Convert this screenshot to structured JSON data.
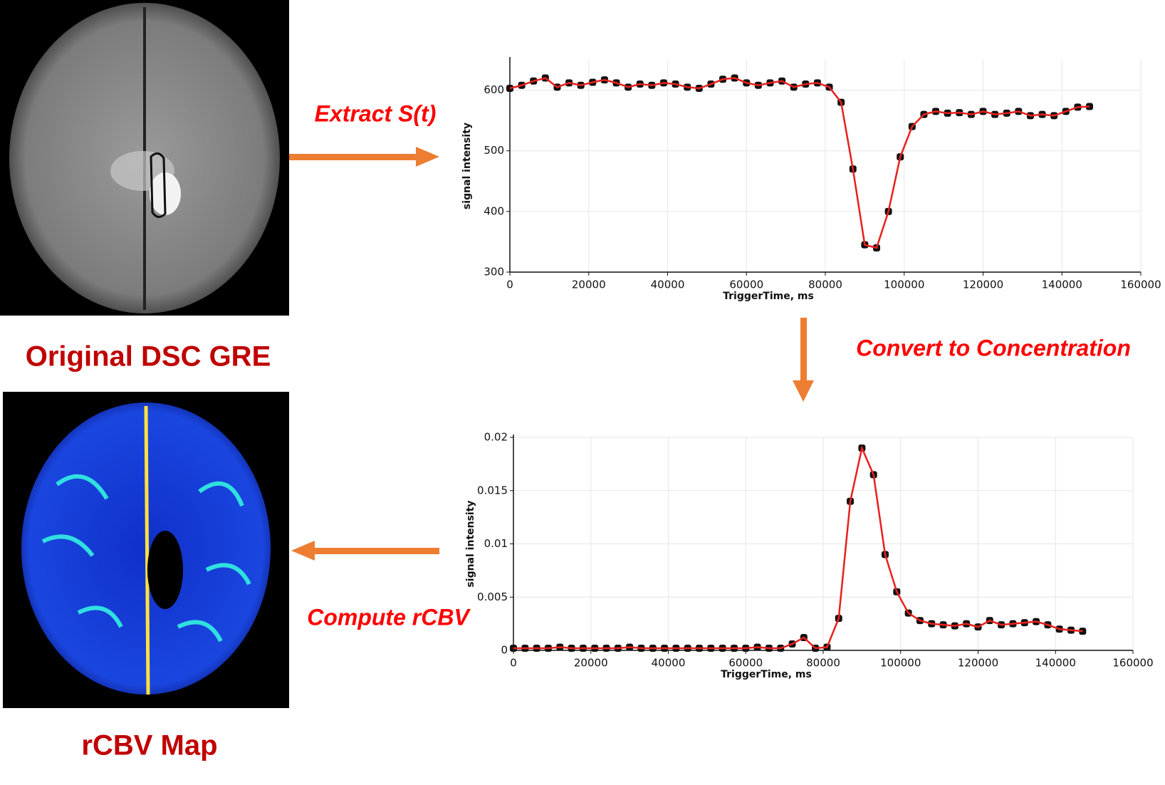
{
  "captions": {
    "original": "Original DSC GRE",
    "rcbv": "rCBV Map"
  },
  "steps": {
    "extract": "Extract S(t)",
    "convert": "Convert to Concentration",
    "compute": "Compute rCBV"
  },
  "chart_data": [
    {
      "type": "line",
      "xlabel": "TriggerTime, ms",
      "ylabel": "signal intensity",
      "x": [
        0,
        3000,
        6000,
        9000,
        12000,
        15000,
        18000,
        21000,
        24000,
        27000,
        30000,
        33000,
        36000,
        39000,
        42000,
        45000,
        48000,
        51000,
        54000,
        57000,
        60000,
        63000,
        66000,
        69000,
        72000,
        75000,
        78000,
        81000,
        84000,
        87000,
        90000,
        93000,
        96000,
        99000,
        102000,
        105000,
        108000,
        111000,
        114000,
        117000,
        120000,
        123000,
        126000,
        129000,
        132000,
        135000,
        138000,
        141000,
        144000,
        147000
      ],
      "values": [
        603,
        608,
        615,
        620,
        605,
        612,
        608,
        613,
        617,
        612,
        605,
        610,
        608,
        612,
        610,
        605,
        603,
        610,
        618,
        620,
        612,
        608,
        612,
        615,
        605,
        610,
        612,
        605,
        580,
        470,
        345,
        340,
        400,
        490,
        540,
        560,
        565,
        562,
        563,
        560,
        565,
        560,
        562,
        565,
        558,
        560,
        558,
        565,
        572,
        573
      ],
      "line_color": "#e8201c",
      "marker_color": "#111111",
      "xlim": [
        0,
        160000
      ],
      "ylim": [
        300,
        650
      ],
      "xticks": [
        0,
        20000,
        40000,
        60000,
        80000,
        100000,
        120000,
        140000,
        160000
      ],
      "yticks": [
        300,
        400,
        500,
        600
      ],
      "grid": true
    },
    {
      "type": "line",
      "xlabel": "TriggerTime, ms",
      "ylabel": "signal intensity",
      "x": [
        0,
        3000,
        6000,
        9000,
        12000,
        15000,
        18000,
        21000,
        24000,
        27000,
        30000,
        33000,
        36000,
        39000,
        42000,
        45000,
        48000,
        51000,
        54000,
        57000,
        60000,
        63000,
        66000,
        69000,
        72000,
        75000,
        78000,
        81000,
        84000,
        87000,
        90000,
        93000,
        96000,
        99000,
        102000,
        105000,
        108000,
        111000,
        114000,
        117000,
        120000,
        123000,
        126000,
        129000,
        132000,
        135000,
        138000,
        141000,
        144000,
        147000
      ],
      "values": [
        0.0002,
        0.0002,
        0.0002,
        0.0002,
        0.0003,
        0.0002,
        0.0002,
        0.0002,
        0.0002,
        0.0002,
        0.0003,
        0.0002,
        0.0002,
        0.0002,
        0.0002,
        0.0002,
        0.0002,
        0.0002,
        0.0002,
        0.0002,
        0.0002,
        0.0003,
        0.0002,
        0.0002,
        0.0006,
        0.0012,
        0.0002,
        0.0003,
        0.003,
        0.014,
        0.019,
        0.0165,
        0.009,
        0.0055,
        0.0035,
        0.0028,
        0.0025,
        0.0024,
        0.0023,
        0.0025,
        0.0022,
        0.0028,
        0.0024,
        0.0025,
        0.0026,
        0.0027,
        0.0024,
        0.002,
        0.0019,
        0.0018
      ],
      "line_color": "#e8201c",
      "marker_color": "#111111",
      "xlim": [
        0,
        160000
      ],
      "ylim": [
        0,
        0.02
      ],
      "xticks": [
        0,
        20000,
        40000,
        60000,
        80000,
        100000,
        120000,
        140000,
        160000
      ],
      "yticks": [
        0,
        0.005,
        0.01,
        0.015,
        0.02
      ],
      "grid": true
    }
  ]
}
